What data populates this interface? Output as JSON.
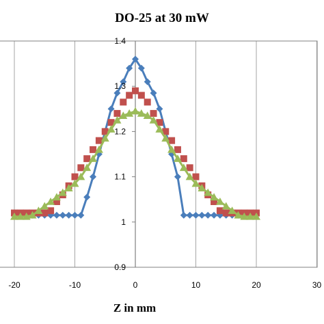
{
  "chart_data": {
    "type": "line",
    "title": "DO-25 at 30 mW",
    "xlabel": "Z in mm",
    "ylabel": "",
    "xlim": [
      -20,
      30
    ],
    "ylim": [
      0.9,
      1.4
    ],
    "x_ticks": [
      -20,
      -10,
      0,
      10,
      20,
      30
    ],
    "y_ticks": [
      0.9,
      1,
      1.1,
      1.2,
      1.3,
      1.4
    ],
    "x_tick_labels": [
      "-20",
      "-10",
      "0",
      "10",
      "20",
      "30"
    ],
    "y_tick_labels": [
      "0.9",
      "1",
      "1.1",
      "1.2",
      "1.3",
      "1.4"
    ],
    "grid": "vertical",
    "legend": "none",
    "series": [
      {
        "marker": "diamond",
        "color": "#4a7ebb",
        "line": true,
        "x": [
          -20,
          -19,
          -18,
          -17,
          -16,
          -15,
          -14,
          -13,
          -12,
          -11,
          -10,
          -9,
          -8,
          -7,
          -6,
          -5,
          -4,
          -3,
          -2,
          -1,
          0,
          1,
          2,
          3,
          4,
          5,
          6,
          7,
          8,
          9,
          10,
          11,
          12,
          13,
          14,
          15,
          16,
          17,
          18,
          19,
          20
        ],
        "values": [
          1.015,
          1.015,
          1.015,
          1.015,
          1.015,
          1.015,
          1.015,
          1.015,
          1.015,
          1.015,
          1.015,
          1.015,
          1.055,
          1.1,
          1.15,
          1.2,
          1.25,
          1.285,
          1.31,
          1.34,
          1.36,
          1.34,
          1.31,
          1.285,
          1.25,
          1.2,
          1.15,
          1.1,
          1.015,
          1.015,
          1.015,
          1.015,
          1.015,
          1.015,
          1.015,
          1.015,
          1.015,
          1.015,
          1.015,
          1.015,
          1.015
        ]
      },
      {
        "marker": "square",
        "color": "#c0504d",
        "line": false,
        "x": [
          -20,
          -19,
          -18,
          -17,
          -16,
          -15,
          -14,
          -13,
          -12,
          -11,
          -10,
          -9,
          -8,
          -7,
          -6,
          -5,
          -4,
          -3,
          -2,
          -1,
          0,
          1,
          2,
          3,
          4,
          5,
          6,
          7,
          8,
          9,
          10,
          11,
          12,
          13,
          14,
          15,
          16,
          17,
          18,
          19,
          20
        ],
        "values": [
          1.02,
          1.02,
          1.02,
          1.02,
          1.02,
          1.02,
          1.025,
          1.045,
          1.06,
          1.08,
          1.1,
          1.12,
          1.14,
          1.16,
          1.18,
          1.2,
          1.22,
          1.24,
          1.265,
          1.28,
          1.29,
          1.28,
          1.265,
          1.24,
          1.22,
          1.2,
          1.18,
          1.16,
          1.14,
          1.12,
          1.1,
          1.08,
          1.06,
          1.045,
          1.025,
          1.02,
          1.02,
          1.02,
          1.02,
          1.02,
          1.02
        ]
      },
      {
        "marker": "triangle",
        "color": "#9bbb59",
        "line": true,
        "x": [
          -20,
          -19,
          -18,
          -17,
          -16,
          -15,
          -14,
          -13,
          -12,
          -11,
          -10,
          -9,
          -8,
          -7,
          -6,
          -5,
          -4,
          -3,
          -2,
          -1,
          0,
          1,
          2,
          3,
          4,
          5,
          6,
          7,
          8,
          9,
          10,
          11,
          12,
          13,
          14,
          15,
          16,
          17,
          18,
          19,
          20
        ],
        "values": [
          1.012,
          1.012,
          1.012,
          1.015,
          1.025,
          1.035,
          1.045,
          1.055,
          1.065,
          1.075,
          1.085,
          1.1,
          1.12,
          1.14,
          1.16,
          1.185,
          1.205,
          1.225,
          1.235,
          1.24,
          1.245,
          1.24,
          1.235,
          1.225,
          1.205,
          1.185,
          1.16,
          1.14,
          1.12,
          1.1,
          1.085,
          1.075,
          1.065,
          1.055,
          1.045,
          1.035,
          1.025,
          1.015,
          1.012,
          1.012,
          1.012
        ]
      }
    ]
  }
}
